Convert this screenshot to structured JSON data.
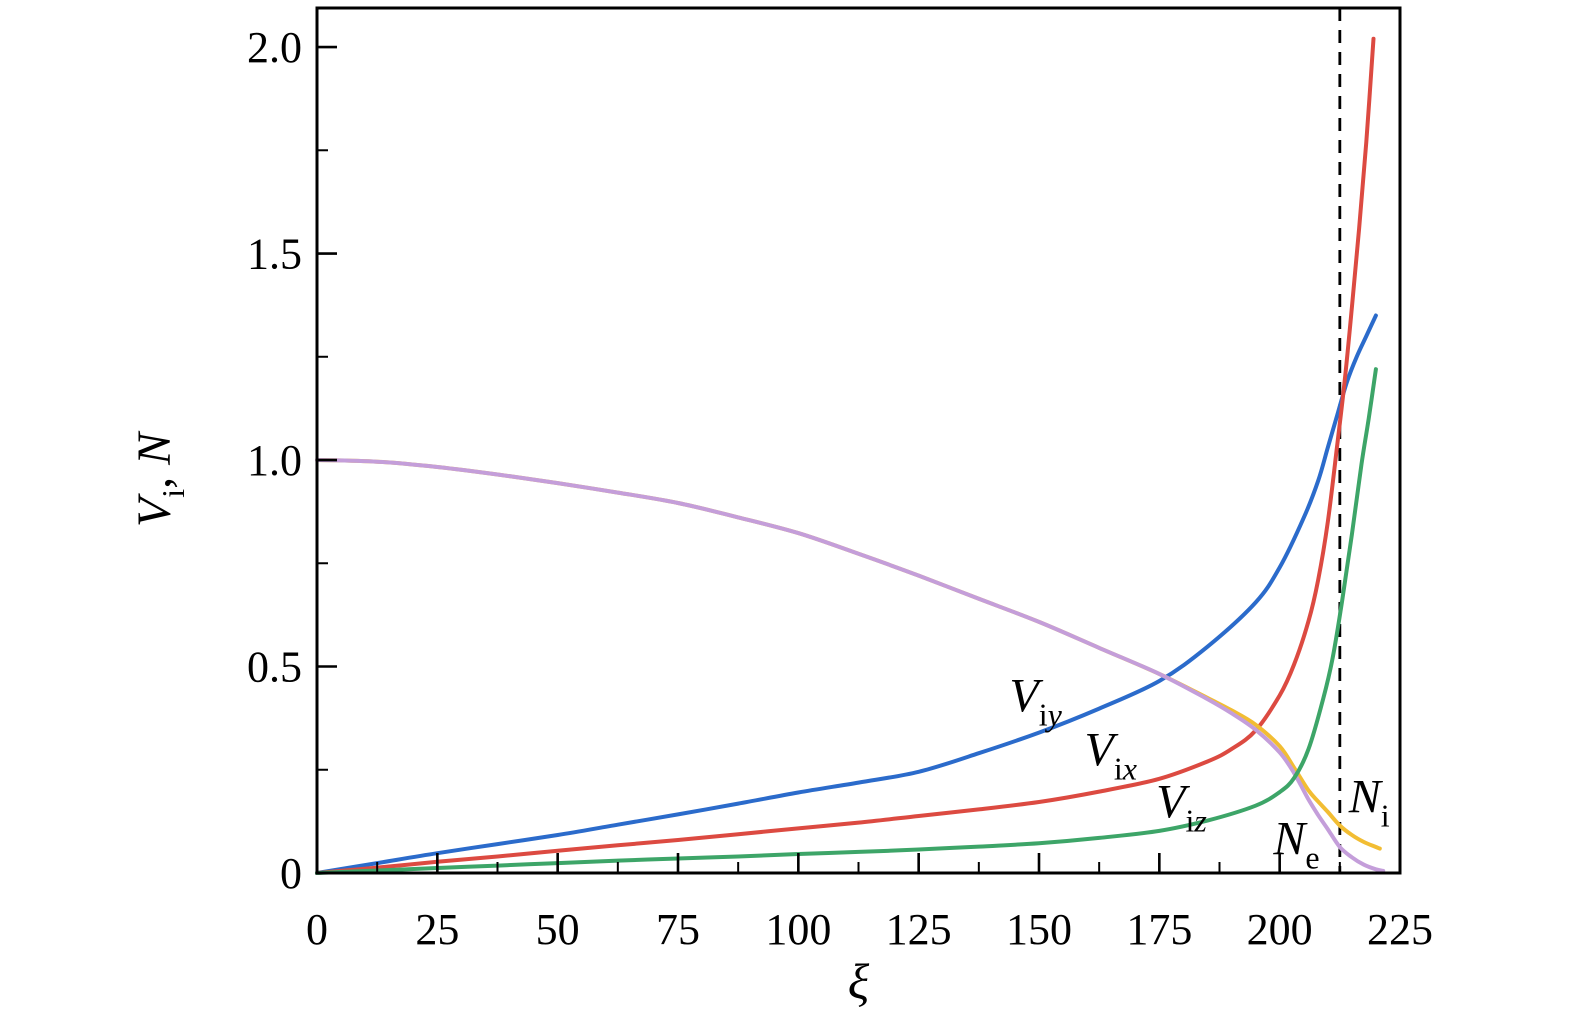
{
  "figure": {
    "background": "#ffffff"
  },
  "chart_data": {
    "type": "line",
    "title": "",
    "xlabel": "ξ",
    "ylabel": "Vi, N",
    "xlim": [
      0,
      225
    ],
    "ylim": [
      0,
      2.0945
    ],
    "grid": false,
    "legend": "inline-labels",
    "frame_color": "#000000",
    "xticks": {
      "values": [
        0,
        25,
        50,
        75,
        100,
        125,
        150,
        175,
        200,
        225
      ],
      "labels": [
        "0",
        "25",
        "50",
        "75",
        "100",
        "125",
        "150",
        "175",
        "200",
        "225"
      ],
      "minor": [
        12.5,
        37.5,
        62.5,
        87.5,
        112.5,
        137.5,
        162.5,
        187.5,
        212.5
      ]
    },
    "yticks": {
      "values": [
        0,
        0.5,
        1.0,
        1.5,
        2.0
      ],
      "labels": [
        "0",
        "0.5",
        "1.0",
        "1.5",
        "2.0"
      ],
      "minor": [
        0.25,
        0.75,
        1.25,
        1.75
      ]
    },
    "vline": {
      "x": 212.5,
      "style": "dashed",
      "color": "#000000"
    },
    "ylabel_parts": [
      {
        "t": "V",
        "italic": true,
        "sub": false
      },
      {
        "t": "i",
        "italic": false,
        "sub": true
      },
      {
        "t": ", ",
        "italic": false,
        "sub": false
      },
      {
        "t": "N",
        "italic": true,
        "sub": false
      }
    ],
    "xlabel_parts": [
      {
        "t": "ξ",
        "italic": true,
        "sub": false
      }
    ],
    "series": [
      {
        "name": "Viy",
        "color": "#2b6bcb",
        "points": [
          [
            0,
            0
          ],
          [
            12.5,
            0.024
          ],
          [
            25,
            0.048
          ],
          [
            37.5,
            0.07
          ],
          [
            50,
            0.092
          ],
          [
            62.5,
            0.117
          ],
          [
            75,
            0.142
          ],
          [
            87.5,
            0.168
          ],
          [
            100,
            0.195
          ],
          [
            112.5,
            0.219
          ],
          [
            125,
            0.245
          ],
          [
            137.5,
            0.29
          ],
          [
            150,
            0.34
          ],
          [
            162.5,
            0.398
          ],
          [
            175,
            0.465
          ],
          [
            185,
            0.548
          ],
          [
            195,
            0.655
          ],
          [
            200,
            0.74
          ],
          [
            205,
            0.86
          ],
          [
            208,
            0.95
          ],
          [
            210,
            1.03
          ],
          [
            212,
            1.11
          ],
          [
            214,
            1.19
          ],
          [
            216,
            1.25
          ],
          [
            218,
            1.3
          ],
          [
            220,
            1.35
          ]
        ]
      },
      {
        "name": "Vix",
        "color": "#dc4a41",
        "points": [
          [
            0,
            0
          ],
          [
            12.5,
            0.013
          ],
          [
            25,
            0.027
          ],
          [
            37.5,
            0.04
          ],
          [
            50,
            0.054
          ],
          [
            62.5,
            0.067
          ],
          [
            75,
            0.08
          ],
          [
            87.5,
            0.094
          ],
          [
            100,
            0.108
          ],
          [
            112.5,
            0.122
          ],
          [
            125,
            0.138
          ],
          [
            137.5,
            0.154
          ],
          [
            150,
            0.172
          ],
          [
            162.5,
            0.197
          ],
          [
            175,
            0.228
          ],
          [
            185,
            0.27
          ],
          [
            190,
            0.3
          ],
          [
            195,
            0.345
          ],
          [
            200,
            0.43
          ],
          [
            203,
            0.505
          ],
          [
            206,
            0.61
          ],
          [
            208,
            0.71
          ],
          [
            210,
            0.85
          ],
          [
            212,
            1.04
          ],
          [
            213.5,
            1.19
          ],
          [
            215,
            1.37
          ],
          [
            216.5,
            1.56
          ],
          [
            218,
            1.77
          ],
          [
            219.5,
            2.02
          ]
        ]
      },
      {
        "name": "Ni",
        "color": "#f2bd33",
        "points": [
          [
            0,
            1.0
          ],
          [
            12.5,
            0.996
          ],
          [
            25,
            0.983
          ],
          [
            37.5,
            0.965
          ],
          [
            50,
            0.944
          ],
          [
            62.5,
            0.921
          ],
          [
            75,
            0.896
          ],
          [
            87.5,
            0.861
          ],
          [
            100,
            0.823
          ],
          [
            112.5,
            0.773
          ],
          [
            125,
            0.72
          ],
          [
            137.5,
            0.664
          ],
          [
            150,
            0.608
          ],
          [
            162.5,
            0.545
          ],
          [
            175,
            0.482
          ],
          [
            185,
            0.424
          ],
          [
            190,
            0.394
          ],
          [
            195,
            0.359
          ],
          [
            200,
            0.307
          ],
          [
            203,
            0.255
          ],
          [
            206,
            0.2
          ],
          [
            208,
            0.173
          ],
          [
            210,
            0.148
          ],
          [
            212.5,
            0.115
          ],
          [
            215,
            0.092
          ],
          [
            217.5,
            0.075
          ],
          [
            220,
            0.063
          ],
          [
            220.8,
            0.059
          ]
        ]
      },
      {
        "name": "Ne",
        "color": "#c49eda",
        "points": [
          [
            0,
            1.0
          ],
          [
            12.5,
            0.996
          ],
          [
            25,
            0.983
          ],
          [
            37.5,
            0.965
          ],
          [
            50,
            0.944
          ],
          [
            62.5,
            0.921
          ],
          [
            75,
            0.896
          ],
          [
            87.5,
            0.861
          ],
          [
            100,
            0.823
          ],
          [
            112.5,
            0.773
          ],
          [
            125,
            0.72
          ],
          [
            137.5,
            0.664
          ],
          [
            150,
            0.608
          ],
          [
            162.5,
            0.545
          ],
          [
            175,
            0.482
          ],
          [
            185,
            0.421
          ],
          [
            190,
            0.387
          ],
          [
            195,
            0.347
          ],
          [
            200,
            0.292
          ],
          [
            203,
            0.242
          ],
          [
            206,
            0.178
          ],
          [
            208,
            0.14
          ],
          [
            210,
            0.106
          ],
          [
            212.5,
            0.063
          ],
          [
            215,
            0.038
          ],
          [
            217.5,
            0.02
          ],
          [
            220,
            0.009
          ],
          [
            221.5,
            0.005
          ]
        ]
      },
      {
        "name": "Viz",
        "color": "#3da568",
        "points": [
          [
            0,
            0
          ],
          [
            12.5,
            0.006
          ],
          [
            25,
            0.012
          ],
          [
            37.5,
            0.018
          ],
          [
            50,
            0.024
          ],
          [
            62.5,
            0.03
          ],
          [
            75,
            0.035
          ],
          [
            87.5,
            0.04
          ],
          [
            100,
            0.046
          ],
          [
            112.5,
            0.051
          ],
          [
            125,
            0.057
          ],
          [
            137.5,
            0.064
          ],
          [
            150,
            0.072
          ],
          [
            162.5,
            0.085
          ],
          [
            175,
            0.102
          ],
          [
            185,
            0.127
          ],
          [
            195,
            0.163
          ],
          [
            200,
            0.196
          ],
          [
            203,
            0.23
          ],
          [
            206,
            0.3
          ],
          [
            209,
            0.42
          ],
          [
            211,
            0.52
          ],
          [
            213,
            0.66
          ],
          [
            215,
            0.82
          ],
          [
            217,
            0.99
          ],
          [
            218.5,
            1.1
          ],
          [
            220,
            1.22
          ]
        ]
      }
    ],
    "annotations": [
      {
        "name": "Viy",
        "x": 149.3,
        "y": 0.432,
        "parts": [
          {
            "t": "V",
            "italic": true,
            "sub": false
          },
          {
            "t": "i",
            "italic": false,
            "sub": true
          },
          {
            "t": "y",
            "italic": true,
            "sub": true
          }
        ]
      },
      {
        "name": "Vix",
        "x": 164.9,
        "y": 0.302,
        "parts": [
          {
            "t": "V",
            "italic": true,
            "sub": false
          },
          {
            "t": "i",
            "italic": false,
            "sub": true
          },
          {
            "t": "x",
            "italic": true,
            "sub": true
          }
        ]
      },
      {
        "name": "Viz",
        "x": 179.6,
        "y": 0.176,
        "parts": [
          {
            "t": "V",
            "italic": true,
            "sub": false
          },
          {
            "t": "i",
            "italic": false,
            "sub": true
          },
          {
            "t": "z",
            "italic": true,
            "sub": true
          }
        ]
      },
      {
        "name": "Ne",
        "x": 203.5,
        "y": 0.086,
        "parts": [
          {
            "t": "N",
            "italic": true,
            "sub": false
          },
          {
            "t": "e",
            "italic": false,
            "sub": true
          }
        ]
      },
      {
        "name": "Ni",
        "x": 218.6,
        "y": 0.188,
        "parts": [
          {
            "t": "N",
            "italic": true,
            "sub": false
          },
          {
            "t": "i",
            "italic": false,
            "sub": true
          }
        ]
      }
    ]
  }
}
